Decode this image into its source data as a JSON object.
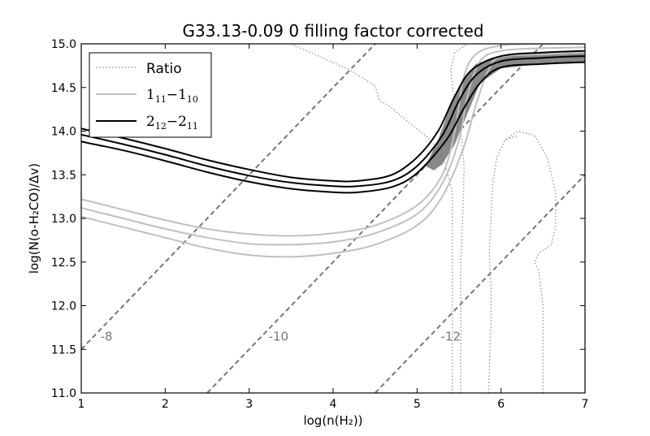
{
  "chart_data": {
    "type": "line",
    "title": "G33.13-0.09 0 filling factor corrected",
    "xlabel": "log(n(H₂))",
    "ylabel": "log(N(o-H₂CO)/Δv)",
    "xlim": [
      1,
      7
    ],
    "ylim": [
      11.0,
      15.0
    ],
    "xticks": [
      1,
      2,
      3,
      4,
      5,
      6,
      7
    ],
    "yticks": [
      11.0,
      11.5,
      12.0,
      12.5,
      13.0,
      13.5,
      14.0,
      14.5,
      15.0
    ],
    "xtick_labels": [
      "1",
      "2",
      "3",
      "4",
      "5",
      "6",
      "7"
    ],
    "ytick_labels": [
      "11.0",
      "11.5",
      "12.0",
      "12.5",
      "13.0",
      "13.5",
      "14.0",
      "14.5",
      "15.0"
    ],
    "legend": {
      "position": "upper-left",
      "entries": [
        {
          "label": "Ratio",
          "style": "dotted",
          "color": "#999999"
        },
        {
          "label_main": "1",
          "label_sub1": "11",
          "label_sep": "−1",
          "label_sub2": "10",
          "style": "solid",
          "color": "#c0c0c0"
        },
        {
          "label_main": "2",
          "label_sub1": "12",
          "label_sep": "−2",
          "label_sub2": "11",
          "style": "solid",
          "color": "#000000"
        }
      ]
    },
    "density_lines": [
      {
        "label": "-8",
        "label_at": [
          1.3,
          11.6
        ],
        "points": [
          [
            1.0,
            11.5
          ],
          [
            4.5,
            15.0
          ]
        ]
      },
      {
        "label": "-10",
        "label_at": [
          3.35,
          11.6
        ],
        "points": [
          [
            2.5,
            11.0
          ],
          [
            6.5,
            15.0
          ]
        ]
      },
      {
        "label": "-12",
        "label_at": [
          5.4,
          11.6
        ],
        "points": [
          [
            4.5,
            11.0
          ],
          [
            7.0,
            13.5
          ]
        ]
      }
    ],
    "series": [
      {
        "name": "1_11-1_10",
        "color": "#c0c0c0",
        "width": 2,
        "style": "solid",
        "points": [
          [
            1.0,
            13.22
          ],
          [
            1.5,
            13.1
          ],
          [
            2.0,
            12.98
          ],
          [
            2.5,
            12.88
          ],
          [
            3.0,
            12.82
          ],
          [
            3.5,
            12.8
          ],
          [
            4.0,
            12.83
          ],
          [
            4.5,
            12.92
          ],
          [
            5.0,
            13.15
          ],
          [
            5.3,
            13.5
          ],
          [
            5.45,
            14.0
          ],
          [
            5.55,
            14.6
          ],
          [
            5.7,
            14.88
          ],
          [
            6.0,
            14.98
          ],
          [
            6.5,
            15.0
          ],
          [
            7.0,
            15.0
          ]
        ]
      },
      {
        "name": "1_11-1_10",
        "color": "#c0c0c0",
        "width": 2,
        "style": "solid",
        "points": [
          [
            1.0,
            13.12
          ],
          [
            1.5,
            13.0
          ],
          [
            2.0,
            12.88
          ],
          [
            2.5,
            12.78
          ],
          [
            3.0,
            12.71
          ],
          [
            3.5,
            12.7
          ],
          [
            4.0,
            12.73
          ],
          [
            4.5,
            12.83
          ],
          [
            5.0,
            13.05
          ],
          [
            5.3,
            13.4
          ],
          [
            5.5,
            13.9
          ],
          [
            5.6,
            14.4
          ],
          [
            5.75,
            14.8
          ],
          [
            6.0,
            14.92
          ],
          [
            6.5,
            14.95
          ],
          [
            7.0,
            14.96
          ]
        ]
      },
      {
        "name": "1_11-1_10",
        "color": "#c0c0c0",
        "width": 2,
        "style": "solid",
        "points": [
          [
            1.0,
            13.02
          ],
          [
            1.5,
            12.9
          ],
          [
            2.0,
            12.78
          ],
          [
            2.5,
            12.66
          ],
          [
            3.0,
            12.58
          ],
          [
            3.5,
            12.56
          ],
          [
            4.0,
            12.6
          ],
          [
            4.5,
            12.7
          ],
          [
            5.0,
            12.92
          ],
          [
            5.3,
            13.25
          ],
          [
            5.55,
            13.8
          ],
          [
            5.7,
            14.3
          ],
          [
            5.85,
            14.7
          ],
          [
            6.0,
            14.85
          ],
          [
            6.5,
            14.88
          ],
          [
            7.0,
            14.9
          ]
        ]
      },
      {
        "name": "2_12-2_11",
        "color": "#000000",
        "width": 2,
        "style": "solid",
        "points": [
          [
            1.0,
            14.03
          ],
          [
            1.5,
            13.92
          ],
          [
            2.0,
            13.8
          ],
          [
            2.5,
            13.67
          ],
          [
            3.0,
            13.56
          ],
          [
            3.5,
            13.47
          ],
          [
            4.0,
            13.43
          ],
          [
            4.3,
            13.43
          ],
          [
            4.7,
            13.5
          ],
          [
            5.0,
            13.7
          ],
          [
            5.25,
            14.0
          ],
          [
            5.45,
            14.4
          ],
          [
            5.65,
            14.7
          ],
          [
            6.0,
            14.86
          ],
          [
            6.5,
            14.9
          ],
          [
            7.0,
            14.92
          ]
        ]
      },
      {
        "name": "2_12-2_11",
        "color": "#000000",
        "width": 2,
        "style": "solid",
        "points": [
          [
            1.0,
            13.96
          ],
          [
            1.5,
            13.85
          ],
          [
            2.0,
            13.73
          ],
          [
            2.5,
            13.6
          ],
          [
            3.0,
            13.49
          ],
          [
            3.5,
            13.41
          ],
          [
            4.0,
            13.37
          ],
          [
            4.3,
            13.37
          ],
          [
            4.7,
            13.43
          ],
          [
            5.0,
            13.6
          ],
          [
            5.3,
            13.95
          ],
          [
            5.5,
            14.35
          ],
          [
            5.7,
            14.64
          ],
          [
            6.0,
            14.8
          ],
          [
            6.5,
            14.84
          ],
          [
            7.0,
            14.86
          ]
        ]
      },
      {
        "name": "2_12-2_11",
        "color": "#000000",
        "width": 2,
        "style": "solid",
        "points": [
          [
            1.0,
            13.88
          ],
          [
            1.5,
            13.78
          ],
          [
            2.0,
            13.66
          ],
          [
            2.5,
            13.53
          ],
          [
            3.0,
            13.42
          ],
          [
            3.5,
            13.34
          ],
          [
            4.0,
            13.3
          ],
          [
            4.3,
            13.3
          ],
          [
            4.7,
            13.36
          ],
          [
            5.0,
            13.52
          ],
          [
            5.35,
            13.9
          ],
          [
            5.55,
            14.25
          ],
          [
            5.75,
            14.55
          ],
          [
            6.0,
            14.73
          ],
          [
            6.5,
            14.77
          ],
          [
            7.0,
            14.79
          ]
        ]
      }
    ],
    "band": {
      "color": "#888888",
      "upper": [
        [
          5.1,
          13.6
        ],
        [
          5.25,
          13.9
        ],
        [
          5.4,
          14.3
        ],
        [
          5.55,
          14.6
        ],
        [
          5.7,
          14.77
        ],
        [
          6.0,
          14.86
        ],
        [
          6.5,
          14.89
        ],
        [
          7.0,
          14.9
        ]
      ],
      "lower": [
        [
          7.0,
          14.79
        ],
        [
          6.5,
          14.77
        ],
        [
          6.0,
          14.72
        ],
        [
          5.75,
          14.55
        ],
        [
          5.6,
          14.2
        ],
        [
          5.45,
          13.85
        ],
        [
          5.3,
          13.62
        ],
        [
          5.2,
          13.55
        ]
      ]
    },
    "ratio_contours": [
      {
        "points": [
          [
            3.5,
            15.0
          ],
          [
            3.85,
            14.85
          ],
          [
            4.2,
            14.7
          ],
          [
            4.5,
            14.52
          ],
          [
            4.55,
            14.35
          ],
          [
            4.65,
            14.3
          ],
          [
            4.9,
            14.1
          ],
          [
            5.1,
            13.95
          ],
          [
            5.3,
            13.75
          ],
          [
            5.42,
            13.3
          ],
          [
            5.42,
            12.0
          ],
          [
            5.42,
            11.0
          ]
        ]
      },
      {
        "points": [
          [
            5.52,
            11.0
          ],
          [
            5.52,
            12.5
          ],
          [
            5.55,
            13.2
          ],
          [
            5.56,
            13.6
          ],
          [
            5.52,
            14.0
          ],
          [
            5.45,
            14.3
          ],
          [
            5.4,
            14.7
          ],
          [
            5.45,
            14.9
          ],
          [
            5.6,
            15.0
          ]
        ]
      },
      {
        "points": [
          [
            5.85,
            11.0
          ],
          [
            5.88,
            11.8
          ],
          [
            5.88,
            12.2
          ],
          [
            5.86,
            12.6
          ],
          [
            5.88,
            13.0
          ],
          [
            5.9,
            13.4
          ],
          [
            5.95,
            13.7
          ],
          [
            6.05,
            13.9
          ],
          [
            6.2,
            13.95
          ]
        ]
      },
      {
        "points": [
          [
            6.5,
            11.0
          ],
          [
            6.5,
            12.0
          ],
          [
            6.45,
            12.4
          ],
          [
            6.4,
            12.5
          ],
          [
            6.45,
            12.6
          ],
          [
            6.6,
            12.7
          ],
          [
            6.65,
            12.9
          ],
          [
            6.65,
            13.3
          ],
          [
            6.55,
            13.7
          ],
          [
            6.4,
            13.95
          ],
          [
            6.2,
            14.0
          ],
          [
            6.05,
            13.9
          ]
        ]
      }
    ]
  }
}
